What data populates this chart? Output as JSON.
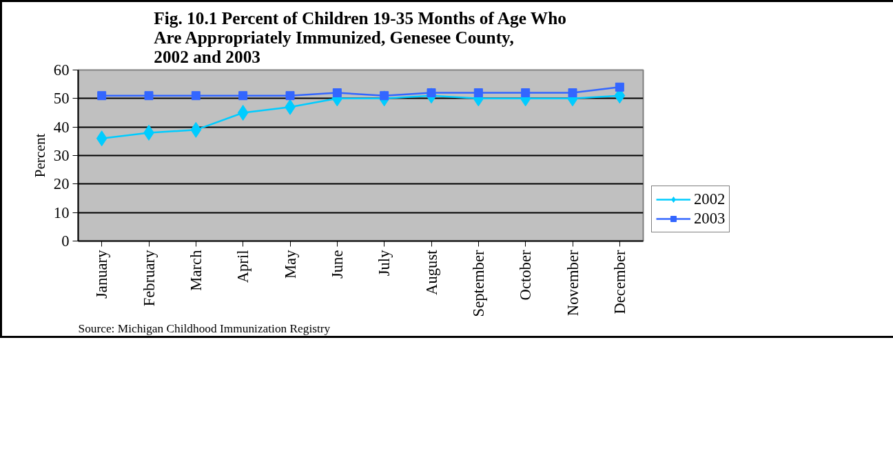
{
  "chart_data": {
    "type": "line",
    "title": "Fig. 10.1 Percent of Children 19-35 Months of Age Who\nAre Appropriately Immunized, Genesee County,\n2002 and 2003",
    "ylabel": "Percent",
    "categories": [
      "January",
      "February",
      "March",
      "April",
      "May",
      "June",
      "July",
      "August",
      "September",
      "October",
      "November",
      "December"
    ],
    "series": [
      {
        "name": "2002",
        "color": "#00ccff",
        "marker": "diamond",
        "values": [
          36,
          38,
          39,
          45,
          47,
          50,
          50,
          51,
          50,
          50,
          50,
          51
        ]
      },
      {
        "name": "2003",
        "color": "#3366ff",
        "marker": "square",
        "values": [
          51,
          51,
          51,
          51,
          51,
          52,
          51,
          52,
          52,
          52,
          52,
          54
        ]
      }
    ],
    "ylim": [
      0,
      60
    ],
    "yticks": [
      0,
      10,
      20,
      30,
      40,
      50,
      60
    ],
    "grid": "y",
    "legend": "right",
    "annotations": [
      "Source: Michigan Childhood Immunization Registry"
    ]
  }
}
